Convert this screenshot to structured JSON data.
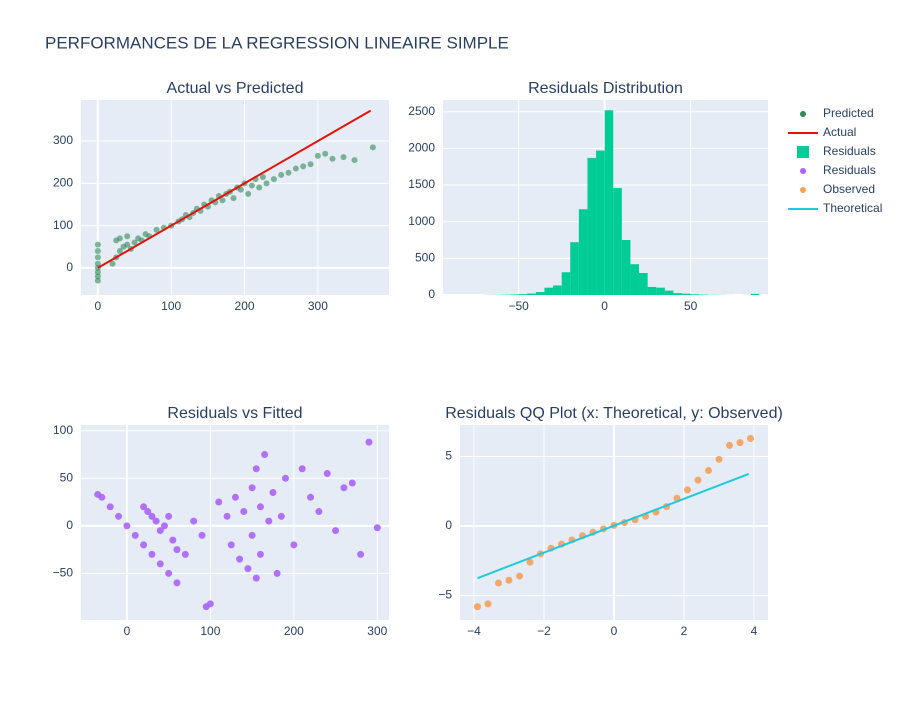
{
  "title": "PERFORMANCES DE LA REGRESSION LINEAIRE SIMPLE",
  "chart_data": [
    {
      "type": "scatter",
      "title": "Actual vs Predicted",
      "xlim": [
        -23,
        397
      ],
      "ylim": [
        -64,
        397
      ],
      "xticks": [
        0,
        100,
        200,
        300
      ],
      "yticks": [
        0,
        100,
        200,
        300
      ],
      "grid": true,
      "series": [
        {
          "name": "Predicted",
          "color": "#2e8b57",
          "mode": "markers",
          "x": [
            0,
            0,
            0,
            0,
            0,
            0,
            0,
            0,
            20,
            25,
            30,
            35,
            40,
            45,
            50,
            55,
            60,
            65,
            70,
            80,
            90,
            100,
            110,
            115,
            120,
            125,
            130,
            135,
            140,
            145,
            150,
            155,
            160,
            165,
            170,
            175,
            180,
            185,
            190,
            195,
            200,
            205,
            210,
            215,
            220,
            225,
            230,
            240,
            250,
            260,
            270,
            280,
            290,
            300,
            310,
            320,
            335,
            350,
            375,
            30,
            40,
            25
          ],
          "values": [
            -30,
            -20,
            -10,
            0,
            10,
            25,
            40,
            55,
            10,
            25,
            40,
            50,
            55,
            45,
            60,
            70,
            65,
            80,
            75,
            90,
            95,
            100,
            110,
            115,
            125,
            120,
            130,
            140,
            135,
            150,
            145,
            160,
            155,
            170,
            160,
            175,
            180,
            165,
            190,
            185,
            200,
            175,
            195,
            210,
            190,
            215,
            200,
            210,
            220,
            225,
            235,
            240,
            245,
            265,
            270,
            258,
            262,
            255,
            285,
            70,
            75,
            65
          ]
        },
        {
          "name": "Actual",
          "color": "#e3120b",
          "mode": "lines",
          "x": [
            0,
            372
          ],
          "values": [
            0,
            372
          ]
        }
      ]
    },
    {
      "type": "histogram",
      "title": "Residuals Distribution",
      "xlim": [
        -94,
        95
      ],
      "ylim": [
        0,
        2660
      ],
      "xticks": [
        {
          "value": -50,
          "label": "−50"
        },
        0,
        50
      ],
      "yticks": [
        0,
        500,
        1000,
        1500,
        2000,
        2500
      ],
      "grid": true,
      "series": [
        {
          "name": "Residuals",
          "color": "#00cc96",
          "bins": [
            -70,
            -65,
            -60,
            -55,
            -50,
            -45,
            -40,
            -35,
            -30,
            -25,
            -20,
            -15,
            -10,
            -5,
            0,
            5,
            10,
            15,
            20,
            25,
            30,
            35,
            40,
            45,
            50,
            55,
            60,
            65,
            70,
            75,
            80,
            85,
            90
          ],
          "values": [
            2,
            3,
            5,
            8,
            12,
            20,
            40,
            100,
            130,
            310,
            720,
            1170,
            1870,
            1970,
            2520,
            1460,
            750,
            420,
            300,
            110,
            100,
            60,
            25,
            18,
            10,
            6,
            3,
            2,
            1,
            0,
            1,
            15
          ]
        }
      ]
    },
    {
      "type": "scatter",
      "title": "Residuals vs Fitted",
      "xlim": [
        -55,
        314
      ],
      "ylim": [
        -99,
        106
      ],
      "xticks": [
        0,
        100,
        200,
        300
      ],
      "yticks": [
        {
          "value": -50,
          "label": "−50"
        },
        0,
        50,
        100
      ],
      "grid": true,
      "series": [
        {
          "name": "Residuals",
          "color": "#ab63fa",
          "mode": "markers",
          "x": [
            -35,
            -30,
            -20,
            -10,
            0,
            10,
            20,
            30,
            40,
            50,
            60,
            20,
            25,
            30,
            35,
            40,
            45,
            50,
            55,
            60,
            70,
            80,
            90,
            100,
            95,
            110,
            120,
            125,
            130,
            135,
            140,
            145,
            150,
            150,
            155,
            155,
            160,
            160,
            165,
            170,
            175,
            180,
            185,
            190,
            200,
            210,
            220,
            230,
            240,
            250,
            260,
            270,
            280,
            290,
            300
          ],
          "values": [
            33,
            30,
            20,
            10,
            0,
            -10,
            -20,
            -30,
            -40,
            -50,
            -60,
            20,
            15,
            10,
            5,
            -5,
            0,
            10,
            -15,
            -25,
            -30,
            5,
            -10,
            -82,
            -85,
            25,
            10,
            -20,
            30,
            -35,
            15,
            -45,
            40,
            -10,
            60,
            -55,
            20,
            -30,
            75,
            5,
            35,
            -50,
            10,
            50,
            -20,
            60,
            30,
            15,
            55,
            -5,
            40,
            45,
            -30,
            88,
            -2
          ]
        }
      ]
    },
    {
      "type": "scatter",
      "title": "Residuals QQ Plot (x: Theoretical, y: Observed)",
      "xlim": [
        -4.4,
        4.4
      ],
      "ylim": [
        -6.76,
        7.27
      ],
      "xticks": [
        {
          "value": -4,
          "label": "−4"
        },
        {
          "value": -2,
          "label": "−2"
        },
        0,
        2,
        4
      ],
      "yticks": [
        {
          "value": -5,
          "label": "−5"
        },
        0,
        5
      ],
      "grid": true,
      "series": [
        {
          "name": "Observed",
          "color": "#f4a05a",
          "mode": "markers",
          "x": [
            -3.9,
            -3.6,
            -3.3,
            -3.0,
            -2.7,
            -2.4,
            -2.1,
            -1.8,
            -1.5,
            -1.2,
            -0.9,
            -0.6,
            -0.3,
            0,
            0.3,
            0.6,
            0.9,
            1.2,
            1.5,
            1.8,
            2.1,
            2.4,
            2.7,
            3.0,
            3.3,
            3.6,
            3.9
          ],
          "values": [
            -5.8,
            -5.6,
            -4.1,
            -3.9,
            -3.6,
            -2.6,
            -2.0,
            -1.6,
            -1.3,
            -1.0,
            -0.7,
            -0.45,
            -0.2,
            0.05,
            0.25,
            0.45,
            0.7,
            1.0,
            1.4,
            2.0,
            2.6,
            3.3,
            4.0,
            4.8,
            5.8,
            6.0,
            6.3
          ]
        },
        {
          "name": "Theoretical",
          "color": "#1fc9e0",
          "mode": "lines",
          "x": [
            -3.9,
            3.85
          ],
          "values": [
            -3.75,
            3.75
          ]
        }
      ]
    }
  ]
}
